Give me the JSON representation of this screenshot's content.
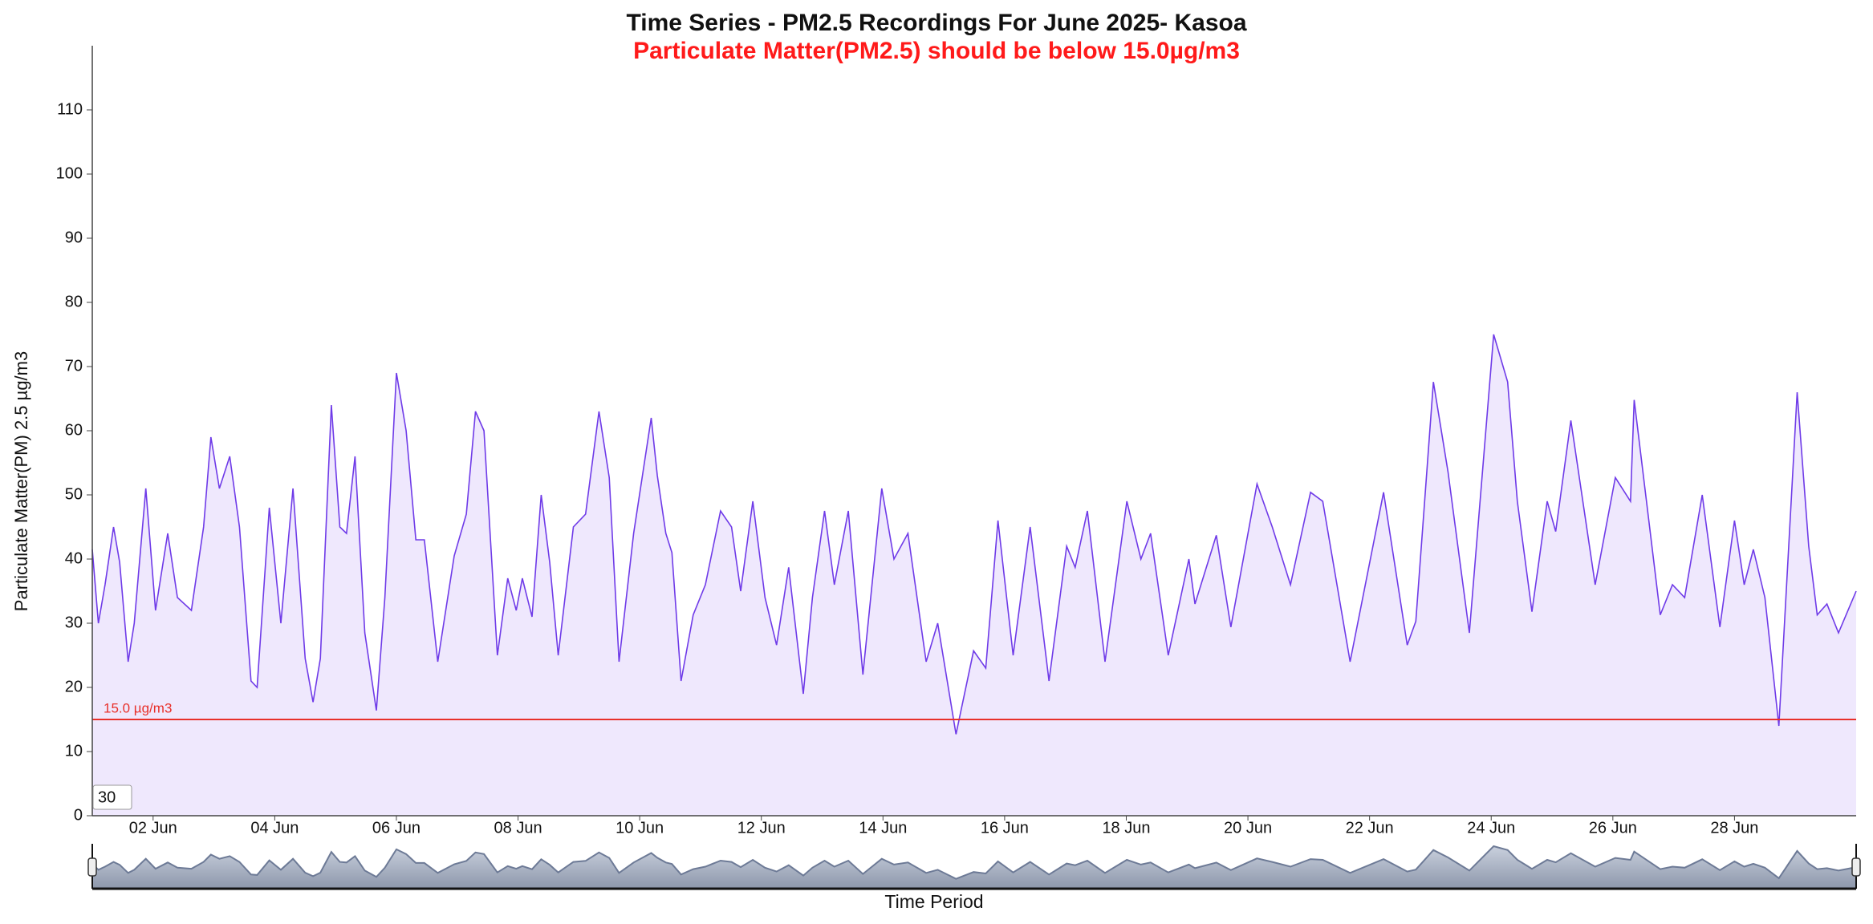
{
  "chart_data": {
    "type": "area-line",
    "title": "Time Series - PM2.5 Recordings For June 2025- Kasoa",
    "subtitle": "Particulate Matter(PM2.5) should be below 15.0µg/m3",
    "y_label": "Particulate Matter(PM) 2.5 µg/m3",
    "x_label": "Time Period",
    "window_input": "30",
    "color": "#6f3be8",
    "fill_color": "#efe8fd",
    "threshold": {
      "value": 15,
      "label": "15.0 µg/m3",
      "color": "#e8302a"
    },
    "xlim": [
      1,
      30
    ],
    "xticks": [
      {
        "value": 2,
        "label": "02 Jun"
      },
      {
        "value": 4,
        "label": "04 Jun"
      },
      {
        "value": 6,
        "label": "06 Jun"
      },
      {
        "value": 8,
        "label": "08 Jun"
      },
      {
        "value": 10,
        "label": "10 Jun"
      },
      {
        "value": 12,
        "label": "12 Jun"
      },
      {
        "value": 14,
        "label": "14 Jun"
      },
      {
        "value": 16,
        "label": "16 Jun"
      },
      {
        "value": 18,
        "label": "18 Jun"
      },
      {
        "value": 20,
        "label": "20 Jun"
      },
      {
        "value": 22,
        "label": "22 Jun"
      },
      {
        "value": 24,
        "label": "24 Jun"
      },
      {
        "value": 26,
        "label": "26 Jun"
      },
      {
        "value": 28,
        "label": "28 Jun"
      }
    ],
    "ylim": [
      0,
      120
    ],
    "yticks": [
      0,
      10,
      20,
      30,
      40,
      50,
      60,
      70,
      80,
      90,
      100,
      110
    ],
    "x": [
      1.0,
      1.1,
      1.21,
      1.35,
      1.45,
      1.59,
      1.69,
      1.88,
      2.04,
      2.24,
      2.4,
      2.63,
      2.83,
      2.95,
      3.09,
      3.26,
      3.42,
      3.61,
      3.71,
      3.91,
      4.1,
      4.3,
      4.5,
      4.63,
      4.75,
      4.93,
      5.07,
      5.18,
      5.32,
      5.48,
      5.67,
      5.81,
      6.0,
      6.16,
      6.32,
      6.46,
      6.68,
      6.95,
      7.15,
      7.3,
      7.44,
      7.66,
      7.83,
      7.97,
      8.07,
      8.23,
      8.38,
      8.52,
      8.66,
      8.91,
      9.11,
      9.33,
      9.5,
      9.66,
      9.9,
      10.19,
      10.29,
      10.43,
      10.53,
      10.68,
      10.88,
      11.08,
      11.33,
      11.51,
      11.66,
      11.86,
      12.06,
      12.25,
      12.45,
      12.69,
      12.84,
      13.04,
      13.2,
      13.43,
      13.67,
      13.98,
      14.18,
      14.41,
      14.71,
      14.9,
      15.2,
      15.49,
      15.69,
      15.89,
      16.14,
      16.42,
      16.73,
      17.02,
      17.16,
      17.36,
      17.65,
      18.01,
      18.24,
      18.4,
      18.69,
      19.03,
      19.13,
      19.48,
      19.72,
      20.15,
      20.4,
      20.7,
      21.03,
      21.23,
      21.68,
      22.23,
      22.62,
      22.76,
      23.05,
      23.29,
      23.64,
      24.04,
      24.27,
      24.43,
      24.67,
      24.92,
      25.06,
      25.31,
      25.71,
      26.04,
      26.29,
      26.35,
      26.78,
      26.98,
      27.18,
      27.47,
      27.76,
      28.0,
      28.16,
      28.31,
      28.5,
      28.73,
      29.03,
      29.22,
      29.36,
      29.52,
      29.71,
      30.0
    ],
    "values": [
      41.5,
      30,
      36,
      45,
      39.5,
      24,
      30,
      51,
      32,
      44,
      34,
      32,
      45,
      59,
      51,
      56,
      45,
      21,
      20,
      48,
      30,
      51,
      24.5,
      17.7,
      24.5,
      64,
      45,
      44,
      56,
      28.5,
      16.4,
      34,
      69,
      60,
      43,
      43,
      24,
      40.5,
      47,
      63,
      60,
      25,
      37,
      32,
      37,
      31,
      50,
      39.5,
      25,
      45,
      47,
      63,
      52.7,
      24,
      44,
      62,
      53,
      44,
      41,
      21,
      31.3,
      36,
      47.5,
      45,
      35,
      49,
      34,
      26.6,
      38.7,
      19,
      34,
      47.5,
      36,
      47.5,
      22,
      51,
      40,
      44,
      24,
      30,
      12.7,
      25.7,
      23,
      46,
      25,
      45,
      21,
      42,
      38.7,
      47.5,
      24,
      49,
      40,
      44,
      25,
      40,
      33,
      43.7,
      29.4,
      51.7,
      45,
      36,
      50.4,
      49,
      24,
      50.4,
      26.6,
      30.3,
      67.6,
      53.6,
      28.5,
      75,
      67.6,
      49,
      31.8,
      49,
      44.3,
      61.6,
      36,
      52.7,
      49,
      64.8,
      31.3,
      36,
      34,
      50,
      29.4,
      46,
      36,
      41.5,
      34,
      14,
      66,
      42,
      31.3,
      33,
      28.5,
      35
    ]
  }
}
